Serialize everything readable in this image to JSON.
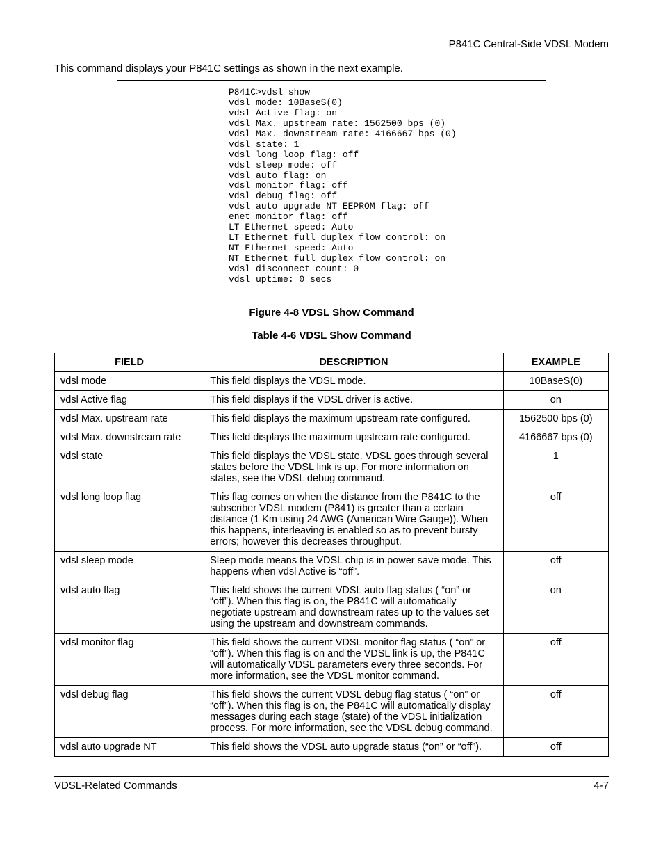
{
  "header": {
    "title": "P841C Central-Side VDSL Modem"
  },
  "intro": "This command displays your P841C settings as shown in the next example.",
  "code_block": "P841C>vdsl show\nvdsl mode: 10BaseS(0)\nvdsl Active flag: on\nvdsl Max. upstream rate: 1562500 bps (0)\nvdsl Max. downstream rate: 4166667 bps (0)\nvdsl state: 1\nvdsl long loop flag: off\nvdsl sleep mode: off\nvdsl auto flag: on\nvdsl monitor flag: off\nvdsl debug flag: off\nvdsl auto upgrade NT EEPROM flag: off\nenet monitor flag: off\nLT Ethernet speed: Auto\nLT Ethernet full duplex flow control: on\nNT Ethernet speed: Auto\nNT Ethernet full duplex flow control: on\nvdsl disconnect count: 0\nvdsl uptime: 0 secs",
  "figure_caption": "Figure 4-8 VDSL Show Command",
  "table_caption": "Table 4-6 VDSL Show Command",
  "table": {
    "headers": {
      "field": "FIELD",
      "description": "DESCRIPTION",
      "example": "EXAMPLE"
    },
    "rows": [
      {
        "field": "vdsl mode",
        "description": "This field displays the VDSL mode.",
        "example": "10BaseS(0)"
      },
      {
        "field": "vdsl Active flag",
        "description": "This field displays if the VDSL driver is active.",
        "example": "on"
      },
      {
        "field": "vdsl Max. upstream rate",
        "description": "This field displays the maximum upstream rate configured.",
        "example": "1562500 bps (0)"
      },
      {
        "field": "vdsl Max. downstream rate",
        "description": "This field displays the maximum upstream rate configured.",
        "example": "4166667 bps (0)"
      },
      {
        "field": "vdsl state",
        "description": "This field displays the VDSL state. VDSL goes through several states before the VDSL link is up. For more information on states, see the VDSL debug command.",
        "example": "1"
      },
      {
        "field": "vdsl long loop flag",
        "description": "This flag comes on when the distance from the P841C to the subscriber VDSL modem (P841) is greater than a certain distance (1 Km using 24 AWG (American Wire Gauge)). When this happens, interleaving is enabled so as to prevent bursty errors; however this decreases throughput.",
        "example": "off"
      },
      {
        "field": "vdsl sleep mode",
        "description": "Sleep mode means the VDSL chip is in power save mode. This happens when vdsl Active is “off”.",
        "example": "off"
      },
      {
        "field": "vdsl auto flag",
        "description": "This field shows the current VDSL auto flag status ( “on” or “off”). When this flag is on, the P841C will automatically negotiate upstream and downstream rates up to the values set using the upstream and downstream commands.",
        "example": "on"
      },
      {
        "field": "vdsl monitor flag",
        "description": "This field shows the current VDSL monitor flag status ( “on” or “off”). When this flag is on and the VDSL link is up, the P841C will automatically VDSL parameters every three seconds. For more information, see the VDSL monitor command.",
        "example": "off"
      },
      {
        "field": "vdsl debug flag",
        "description": "This field shows the current VDSL debug flag status ( “on” or “off”). When this flag is on, the P841C will automatically display messages during each stage (state) of the VDSL initialization process. For more information, see the VDSL debug command.",
        "example": "off"
      },
      {
        "field": "vdsl auto upgrade NT",
        "description": "This field shows the VDSL auto upgrade status (“on” or “off”).",
        "example": "off"
      }
    ]
  },
  "footer": {
    "left": "VDSL-Related Commands",
    "right": "4-7"
  }
}
